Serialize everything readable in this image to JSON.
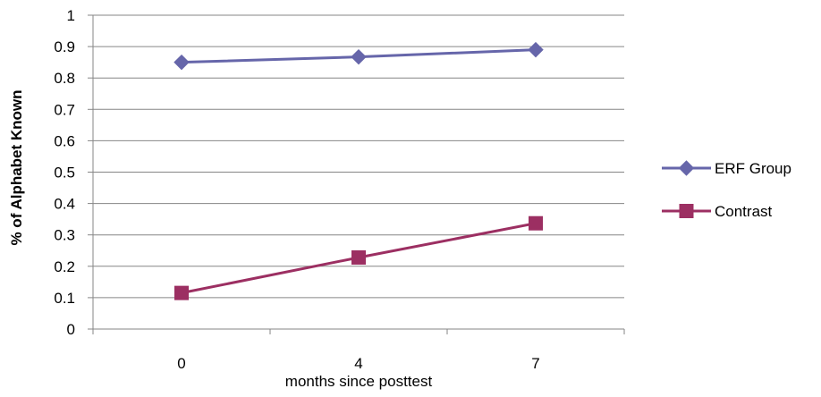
{
  "chart_data": {
    "type": "line",
    "title": "",
    "xlabel": "months since posttest",
    "ylabel": "% of Alphabet Known",
    "categories": [
      "0",
      "4",
      "7"
    ],
    "ylim": [
      0,
      1
    ],
    "y_ticks": [
      "0",
      "0.1",
      "0.2",
      "0.3",
      "0.4",
      "0.5",
      "0.6",
      "0.7",
      "0.8",
      "0.9",
      "1"
    ],
    "grid": true,
    "legend_position": "right",
    "series": [
      {
        "name": "ERF Group",
        "values": [
          0.85,
          0.867,
          0.89
        ],
        "color": "#6666aa",
        "marker": "diamond"
      },
      {
        "name": "Contrast",
        "values": [
          0.115,
          0.228,
          0.337
        ],
        "color": "#9c2f62",
        "marker": "square"
      }
    ]
  }
}
